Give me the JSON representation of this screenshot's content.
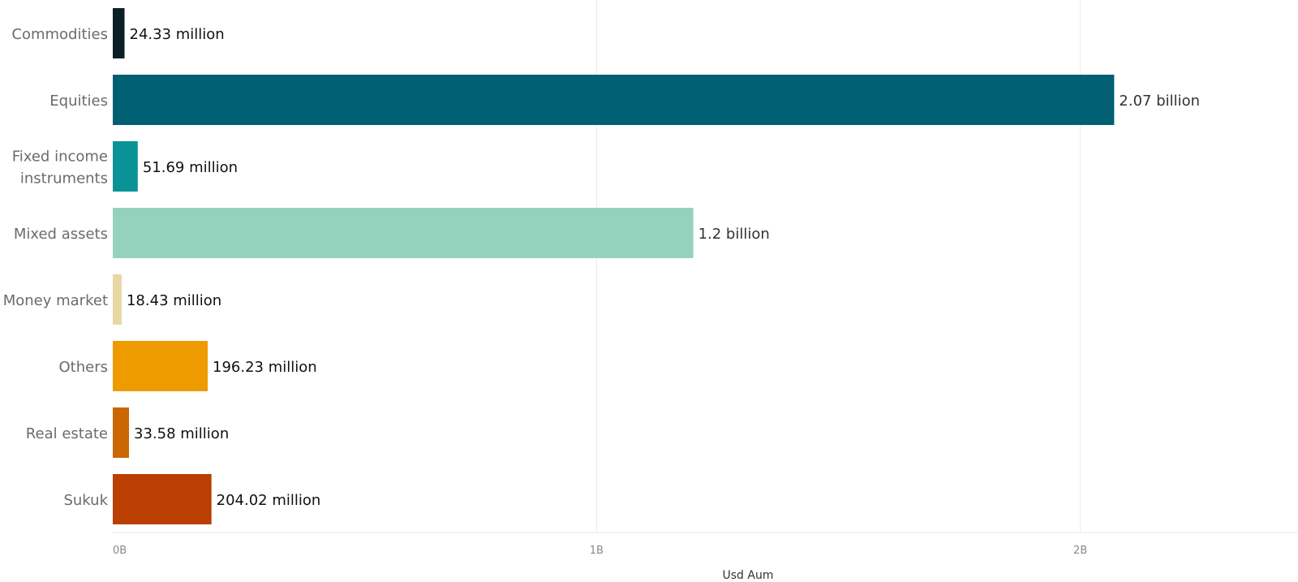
{
  "chart_data": {
    "type": "bar",
    "orientation": "horizontal",
    "categories": [
      "Commodities",
      "Equities",
      "Fixed income instruments",
      "Mixed assets",
      "Money market",
      "Others",
      "Real estate",
      "Sukuk"
    ],
    "category_lines": [
      [
        "Commodities"
      ],
      [
        "Equities"
      ],
      [
        "Fixed income",
        "instruments"
      ],
      [
        "Mixed assets"
      ],
      [
        "Money market"
      ],
      [
        "Others"
      ],
      [
        "Real estate"
      ],
      [
        "Sukuk"
      ]
    ],
    "values": [
      24330000,
      2070000000,
      51690000,
      1200000000,
      18430000,
      196230000,
      33580000,
      204020000
    ],
    "value_labels": [
      "24.33 million",
      "2.07 billion",
      "51.69 million",
      "1.2 billion",
      "18.43 million",
      "196.23 million",
      "33.58 million",
      "204.02 million"
    ],
    "colors": [
      "#0b1f26",
      "#005f73",
      "#0a9396",
      "#94d2bd",
      "#e9d8a6",
      "#ee9b00",
      "#ca6702",
      "#bb3e03"
    ],
    "value_label_colors": [
      "#111111",
      "#333333",
      "#111111",
      "#333333",
      "#111111",
      "#111111",
      "#111111",
      "#111111"
    ],
    "xlabel": "Usd Aum",
    "ylabel": "",
    "xlim": [
      0,
      2450000000
    ],
    "xticks": [
      0,
      1000000000,
      2000000000
    ],
    "xtick_labels": [
      "0B",
      "1B",
      "2B"
    ],
    "grid": true,
    "legend": "none"
  }
}
